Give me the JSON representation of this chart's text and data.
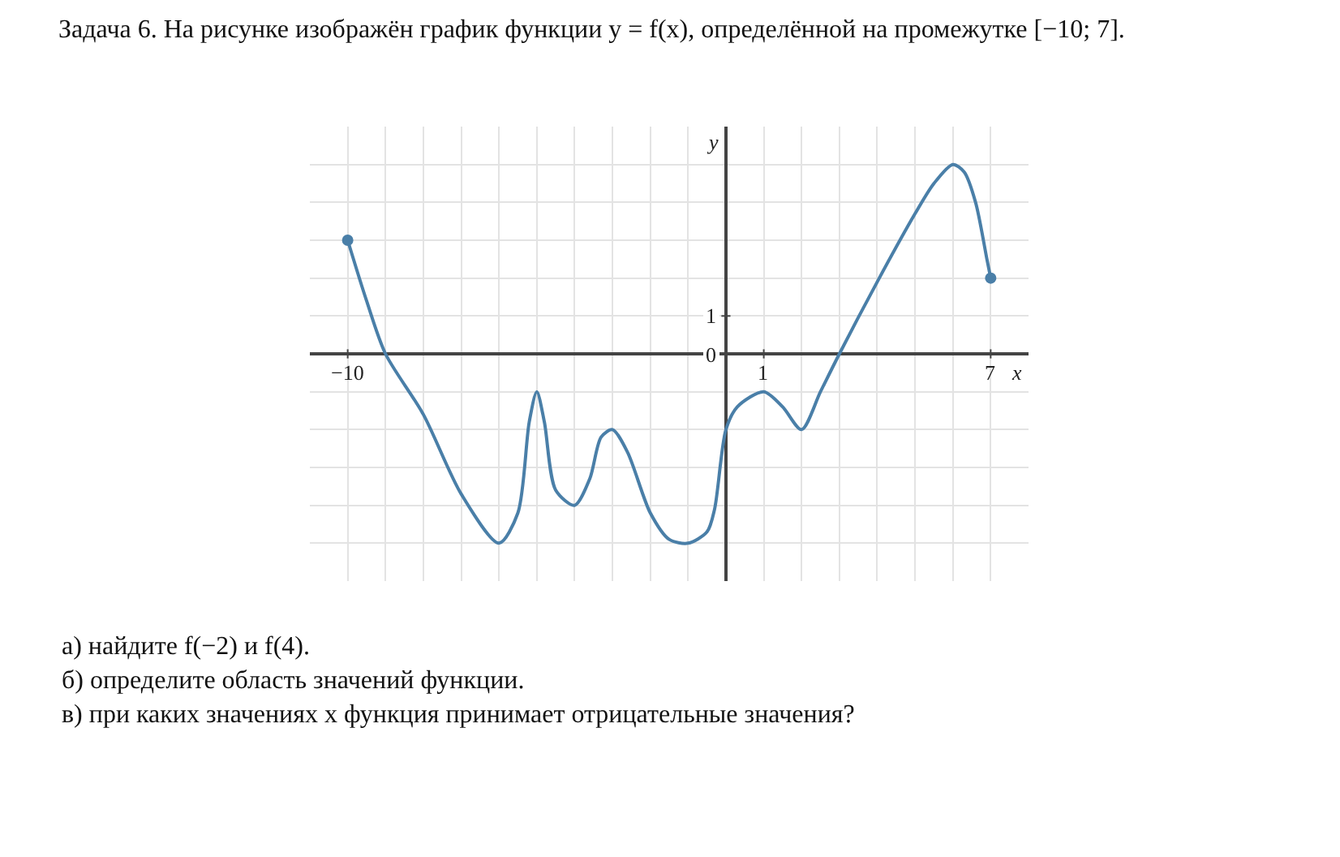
{
  "chart_data": {
    "type": "line",
    "title": "Задача 6. На рисунке изображён график функции y = f(x), определённой на промежутке [−10; 7].",
    "xlabel": "x",
    "ylabel": "y",
    "x": [
      -10,
      -9.5,
      -9,
      -8,
      -7,
      -6,
      -5.5,
      -5.2,
      -5,
      -4.8,
      -4.5,
      -4,
      -3.6,
      -3.3,
      -3,
      -2.6,
      -2,
      -1.5,
      -1,
      -0.5,
      -0.3,
      0,
      0.3,
      1,
      1.5,
      2,
      2.5,
      3,
      4,
      5,
      5.5,
      6,
      6.3,
      6.6,
      6.9,
      7
    ],
    "series": [
      {
        "color": "#4a7fa8",
        "marker": "none",
        "values": [
          3,
          1.4,
          0,
          -1.6,
          -3.7,
          -5,
          -4.2,
          -1.8,
          -1,
          -1.8,
          -3.6,
          -4,
          -3.3,
          -2.2,
          -2,
          -2.6,
          -4.2,
          -4.9,
          -5,
          -4.7,
          -4.1,
          -2,
          -1.4,
          -1,
          -1.4,
          -2,
          -1,
          0,
          1.9,
          3.7,
          4.5,
          5,
          4.8,
          4,
          2.5,
          2
        ]
      },
      {
        "type": "scatter",
        "color": "#4a7fa8",
        "marker": "circle",
        "x": [
          -10,
          7
        ],
        "values": [
          3,
          2
        ]
      }
    ],
    "xlim": [
      -11,
      8
    ],
    "ylim": [
      -6,
      6
    ],
    "xticks": [
      {
        "value": -10,
        "label": "−10"
      },
      {
        "value": -9,
        "label": null
      },
      {
        "value": -8,
        "label": null
      },
      {
        "value": -7,
        "label": null
      },
      {
        "value": -6,
        "label": null
      },
      {
        "value": -5,
        "label": null
      },
      {
        "value": -4,
        "label": null
      },
      {
        "value": -3,
        "label": null
      },
      {
        "value": -2,
        "label": null
      },
      {
        "value": -1,
        "label": null
      },
      {
        "value": 0,
        "label": null
      },
      {
        "value": 1,
        "label": "1"
      },
      {
        "value": 2,
        "label": null
      },
      {
        "value": 3,
        "label": null
      },
      {
        "value": 4,
        "label": null
      },
      {
        "value": 5,
        "label": null
      },
      {
        "value": 6,
        "label": null
      },
      {
        "value": 7,
        "label": "7"
      }
    ],
    "yticks": [
      {
        "value": -5,
        "label": null
      },
      {
        "value": -4,
        "label": null
      },
      {
        "value": -3,
        "label": null
      },
      {
        "value": -2,
        "label": null
      },
      {
        "value": -1,
        "label": null
      },
      {
        "value": 0,
        "label": "0"
      },
      {
        "value": 1,
        "label": "1"
      },
      {
        "value": 2,
        "label": null
      },
      {
        "value": 3,
        "label": null
      },
      {
        "value": 4,
        "label": null
      },
      {
        "value": 5,
        "label": null
      }
    ],
    "grid": true,
    "annotations": [
      "а) найдите f(−2) и f(4).",
      "б) определите область значений функции.",
      "в) при каких значениях x функция принимает отрицательные значения?"
    ]
  }
}
